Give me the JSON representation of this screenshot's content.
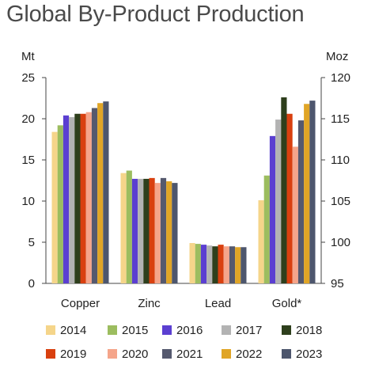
{
  "chart_data": {
    "type": "bar",
    "title": "Global By-Product Production",
    "y_left_label": "Mt",
    "y_right_label": "Moz",
    "y_left_range": [
      0,
      25
    ],
    "y_left_ticks": [
      "0",
      "5",
      "10",
      "15",
      "20",
      "25"
    ],
    "y_right_range": [
      95,
      120
    ],
    "y_right_ticks": [
      "95",
      "100",
      "105",
      "110",
      "115",
      "120"
    ],
    "categories": [
      "Copper",
      "Zinc",
      "Lead",
      "Gold*"
    ],
    "category_axis": [
      "left",
      "left",
      "left",
      "right"
    ],
    "grid": false,
    "legend_position": "bottom",
    "series": [
      {
        "name": "2014",
        "color": "#f5d58a",
        "values": [
          18.4,
          13.4,
          4.9,
          105.1
        ]
      },
      {
        "name": "2015",
        "color": "#9cbd5f",
        "values": [
          19.2,
          13.7,
          4.8,
          108.1
        ]
      },
      {
        "name": "2016",
        "color": "#5b3fd1",
        "values": [
          20.4,
          12.7,
          4.7,
          112.9
        ]
      },
      {
        "name": "2017",
        "color": "#b3b3b3",
        "values": [
          20.2,
          12.7,
          4.6,
          114.9
        ]
      },
      {
        "name": "2018",
        "color": "#2e3f1c",
        "values": [
          20.6,
          12.7,
          4.5,
          117.6
        ]
      },
      {
        "name": "2019",
        "color": "#d9400f",
        "values": [
          20.6,
          12.8,
          4.7,
          115.6
        ]
      },
      {
        "name": "2020",
        "color": "#f5a58a",
        "values": [
          20.8,
          12.2,
          4.5,
          111.6
        ]
      },
      {
        "name": "2021",
        "color": "#55596e",
        "values": [
          21.3,
          12.8,
          4.5,
          114.8
        ]
      },
      {
        "name": "2022",
        "color": "#e0a526",
        "values": [
          21.9,
          12.4,
          4.4,
          116.8
        ]
      },
      {
        "name": "2023",
        "color": "#4d566d",
        "values": [
          22.1,
          12.2,
          4.4,
          117.2
        ]
      }
    ]
  }
}
